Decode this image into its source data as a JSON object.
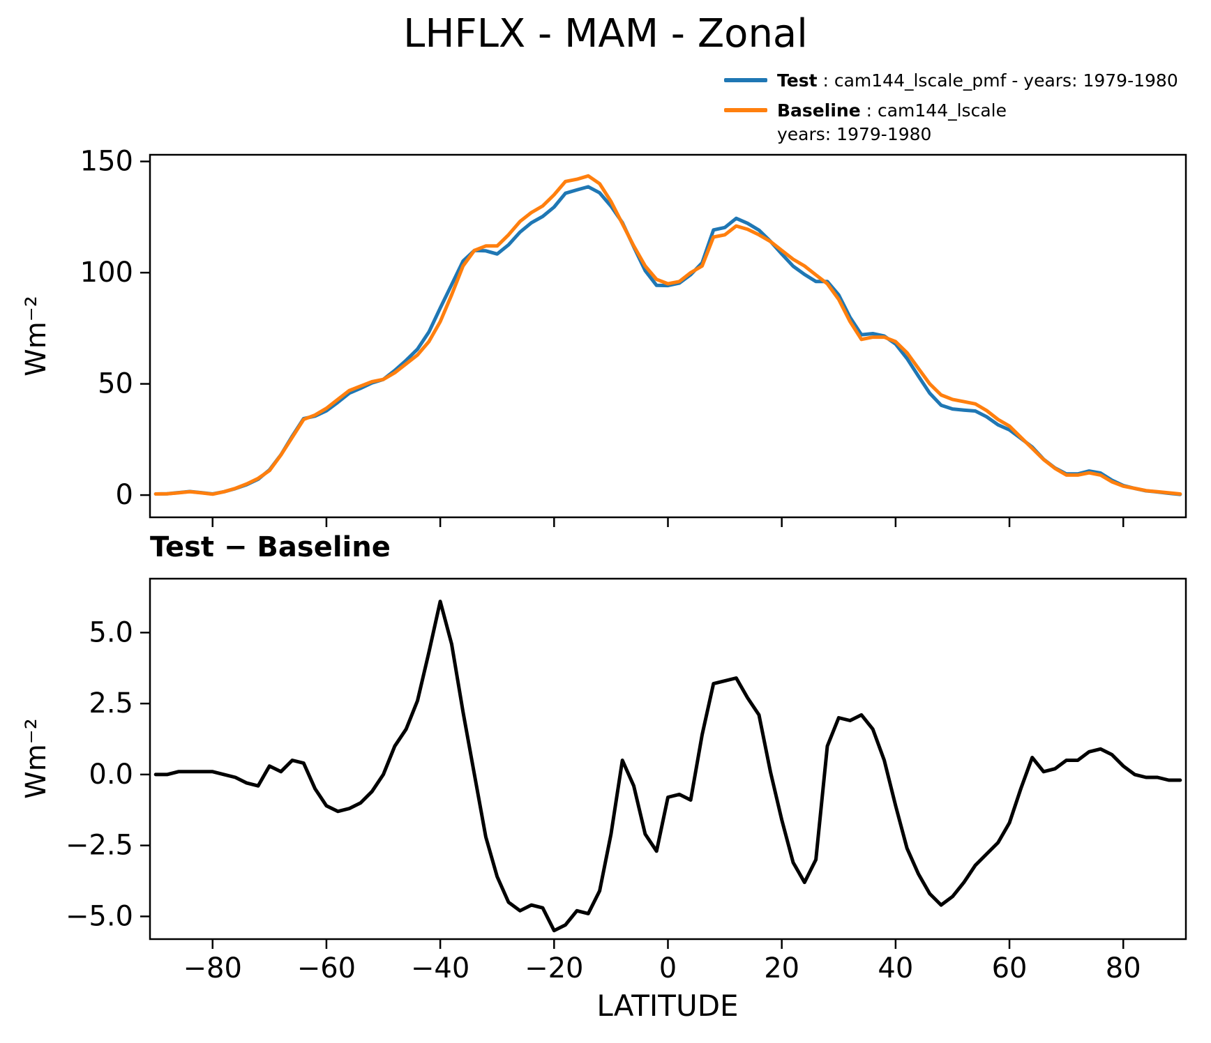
{
  "title": "LHFLX - MAM - Zonal",
  "legend": {
    "test": {
      "label": "Test",
      "rest": " : cam144_lscale_pmf - years: 1979-1980",
      "color": "#1f77b4"
    },
    "baseline": {
      "label": "Baseline",
      "rest": " : cam144_lscale",
      "line2": "years: 1979-1980",
      "color": "#ff7f0e"
    }
  },
  "chart_data": [
    {
      "type": "line",
      "panel": "top",
      "title": "LHFLX - MAM - Zonal",
      "ylabel": "Wm⁻²",
      "xlabel": "",
      "xlim": [
        -91,
        91
      ],
      "ylim": [
        -10,
        153
      ],
      "grid": false,
      "legend_position": "upper right outside",
      "yticks": [
        0,
        50,
        100,
        150
      ],
      "ytick_labels": [
        "0",
        "50",
        "100",
        "150"
      ],
      "xticks": [
        -80,
        -60,
        -40,
        -20,
        0,
        20,
        40,
        60,
        80
      ],
      "xtick_labels": null,
      "x": [
        -90,
        -88,
        -86,
        -84,
        -82,
        -80,
        -78,
        -76,
        -74,
        -72,
        -70,
        -68,
        -66,
        -64,
        -62,
        -60,
        -58,
        -56,
        -54,
        -52,
        -50,
        -48,
        -46,
        -44,
        -42,
        -40,
        -38,
        -36,
        -34,
        -32,
        -30,
        -28,
        -26,
        -24,
        -22,
        -20,
        -18,
        -16,
        -14,
        -12,
        -10,
        -8,
        -6,
        -4,
        -2,
        0,
        2,
        4,
        6,
        8,
        10,
        12,
        14,
        16,
        18,
        20,
        22,
        24,
        26,
        28,
        30,
        32,
        34,
        36,
        38,
        40,
        42,
        44,
        46,
        48,
        50,
        52,
        54,
        56,
        58,
        60,
        62,
        64,
        66,
        68,
        70,
        72,
        74,
        76,
        78,
        80,
        82,
        84,
        86,
        88,
        90
      ],
      "series": [
        {
          "name": "Test",
          "label": "Test : cam144_lscale_pmf - years: 1979-1980",
          "color": "#1f77b4",
          "values": [
            0.5,
            0.6,
            1.1,
            1.6,
            1.1,
            0.5,
            1.5,
            2.9,
            4.7,
            7.1,
            11.3,
            18.1,
            26.5,
            34.4,
            35.5,
            37.9,
            41.7,
            45.8,
            48.0,
            50.4,
            52.0,
            56.0,
            60.6,
            65.6,
            73.3,
            84.1,
            94.6,
            105.2,
            110.0,
            109.8,
            108.4,
            112.5,
            118.2,
            122.4,
            125.3,
            129.5,
            135.7,
            137.2,
            138.6,
            135.9,
            129.9,
            122.5,
            111.6,
            100.9,
            94.3,
            94.2,
            95.3,
            99.1,
            104.4,
            119.2,
            120.3,
            124.4,
            122.2,
            119.1,
            114.1,
            108.4,
            102.9,
            99.2,
            96.0,
            96.0,
            90.0,
            79.9,
            72.1,
            72.6,
            71.5,
            67.9,
            61.4,
            53.5,
            45.8,
            40.4,
            38.7,
            38.2,
            37.8,
            35.2,
            31.6,
            29.3,
            25.5,
            21.6,
            16.1,
            12.2,
            9.5,
            9.5,
            10.8,
            9.9,
            6.7,
            4.3,
            3.0,
            1.9,
            1.4,
            0.8,
            0.3
          ]
        },
        {
          "name": "Baseline",
          "label": "Baseline : cam144_lscale years: 1979-1980",
          "color": "#ff7f0e",
          "values": [
            0.5,
            0.6,
            1.0,
            1.5,
            1.0,
            0.4,
            1.5,
            3.0,
            5.0,
            7.5,
            11,
            18,
            26,
            34,
            36,
            39,
            43,
            47,
            49,
            51,
            52,
            55,
            59,
            63,
            69,
            78,
            90,
            103,
            110,
            112,
            112,
            117,
            123,
            127,
            130,
            135,
            141,
            142,
            143.5,
            140,
            132,
            122,
            112,
            103,
            97,
            95,
            96,
            100,
            103,
            116,
            117,
            121,
            119.5,
            117,
            114,
            110,
            106,
            103,
            99,
            95,
            88,
            78,
            70,
            71,
            71,
            69,
            64,
            57,
            50,
            45,
            43,
            42,
            41,
            38,
            34,
            31,
            26,
            21,
            16,
            12,
            9,
            9,
            10,
            9,
            6,
            4,
            3,
            2,
            1.5,
            1.0,
            0.5
          ]
        }
      ]
    },
    {
      "type": "line",
      "panel": "bottom",
      "title": "Test − Baseline",
      "ylabel": "Wm⁻²",
      "xlabel": "LATITUDE",
      "xlim": [
        -91,
        91
      ],
      "ylim": [
        -5.8,
        6.9
      ],
      "grid": false,
      "yticks": [
        -5.0,
        -2.5,
        0.0,
        2.5,
        5.0
      ],
      "ytick_labels": [
        "−5.0",
        "−2.5",
        "0.0",
        "2.5",
        "5.0"
      ],
      "xticks": [
        -80,
        -60,
        -40,
        -20,
        0,
        20,
        40,
        60,
        80
      ],
      "xtick_labels": [
        "−80",
        "−60",
        "−40",
        "−20",
        "0",
        "20",
        "40",
        "60",
        "80"
      ],
      "x": [
        -90,
        -88,
        -86,
        -84,
        -82,
        -80,
        -78,
        -76,
        -74,
        -72,
        -70,
        -68,
        -66,
        -64,
        -62,
        -60,
        -58,
        -56,
        -54,
        -52,
        -50,
        -48,
        -46,
        -44,
        -42,
        -40,
        -38,
        -36,
        -34,
        -32,
        -30,
        -28,
        -26,
        -24,
        -22,
        -20,
        -18,
        -16,
        -14,
        -12,
        -10,
        -8,
        -6,
        -4,
        -2,
        0,
        2,
        4,
        6,
        8,
        10,
        12,
        14,
        16,
        18,
        20,
        22,
        24,
        26,
        28,
        30,
        32,
        34,
        36,
        38,
        40,
        42,
        44,
        46,
        48,
        50,
        52,
        54,
        56,
        58,
        60,
        62,
        64,
        66,
        68,
        70,
        72,
        74,
        76,
        78,
        80,
        82,
        84,
        86,
        88,
        90
      ],
      "series": [
        {
          "name": "Test minus Baseline",
          "color": "#000000",
          "values": [
            0.0,
            0.0,
            0.1,
            0.1,
            0.1,
            0.1,
            0.0,
            -0.1,
            -0.3,
            -0.4,
            0.3,
            0.1,
            0.5,
            0.4,
            -0.5,
            -1.1,
            -1.3,
            -1.2,
            -1.0,
            -0.6,
            0.0,
            1.0,
            1.6,
            2.6,
            4.3,
            6.1,
            4.6,
            2.2,
            0.0,
            -2.2,
            -3.6,
            -4.5,
            -4.8,
            -4.6,
            -4.7,
            -5.5,
            -5.3,
            -4.8,
            -4.9,
            -4.1,
            -2.1,
            0.5,
            -0.4,
            -2.1,
            -2.7,
            -0.8,
            -0.7,
            -0.9,
            1.4,
            3.2,
            3.3,
            3.4,
            2.7,
            2.1,
            0.1,
            -1.6,
            -3.1,
            -3.8,
            -3.0,
            1.0,
            2.0,
            1.9,
            2.1,
            1.6,
            0.5,
            -1.1,
            -2.6,
            -3.5,
            -4.2,
            -4.6,
            -4.3,
            -3.8,
            -3.2,
            -2.8,
            -2.4,
            -1.7,
            -0.5,
            0.6,
            0.1,
            0.2,
            0.5,
            0.5,
            0.8,
            0.9,
            0.7,
            0.3,
            0.0,
            -0.1,
            -0.1,
            -0.2,
            -0.2
          ]
        }
      ]
    }
  ]
}
